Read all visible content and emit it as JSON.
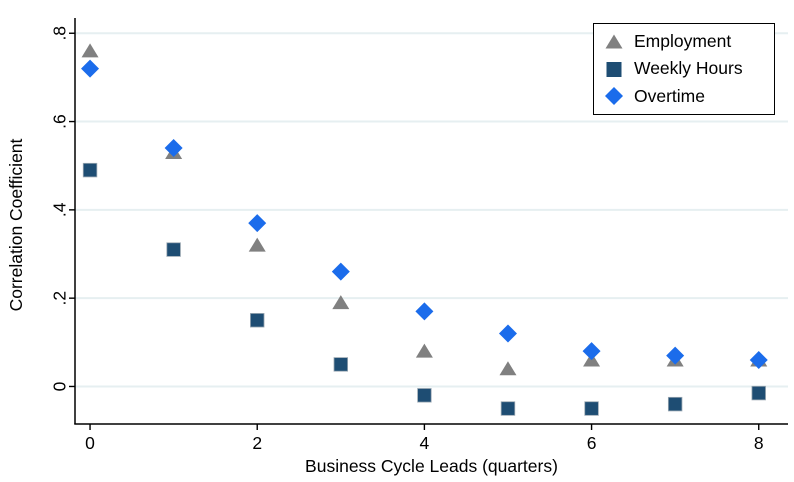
{
  "chart_data": {
    "type": "scatter",
    "title": "",
    "xlabel": "Business Cycle Leads (quarters)",
    "ylabel": "Correlation Coefficient",
    "x": [
      0,
      1,
      2,
      3,
      4,
      5,
      6,
      7,
      8
    ],
    "series": [
      {
        "name": "Employment",
        "marker": "triangle",
        "color": "#808080",
        "values": [
          0.76,
          0.53,
          0.32,
          0.19,
          0.08,
          0.04,
          0.06,
          0.06,
          0.06
        ]
      },
      {
        "name": "Weekly Hours",
        "marker": "square",
        "color": "#1e4d73",
        "values": [
          0.49,
          0.31,
          0.15,
          0.05,
          -0.02,
          -0.05,
          -0.05,
          -0.04,
          -0.015
        ]
      },
      {
        "name": "Overtime",
        "marker": "diamond",
        "color": "#1b6ceb",
        "values": [
          0.72,
          0.54,
          0.37,
          0.26,
          0.17,
          0.12,
          0.08,
          0.07,
          0.06
        ]
      }
    ],
    "xticks": [
      0,
      2,
      4,
      6,
      8
    ],
    "xtick_labels": [
      "0",
      "2",
      "4",
      "6",
      "8"
    ],
    "yticks": [
      0,
      0.2,
      0.4,
      0.6,
      0.8
    ],
    "ytick_labels": [
      "0",
      ".2",
      ".4",
      ".6",
      ".8"
    ],
    "xlim": [
      -0.18,
      8.35
    ],
    "ylim": [
      -0.085,
      0.83
    ],
    "grid": "horizontal-only",
    "legend_position": "top-right-inside",
    "colors": {
      "gridline": "#e6eff1",
      "axis_line": "#000000",
      "tick_label": "#000000",
      "plot_background": "#ffffff"
    }
  }
}
